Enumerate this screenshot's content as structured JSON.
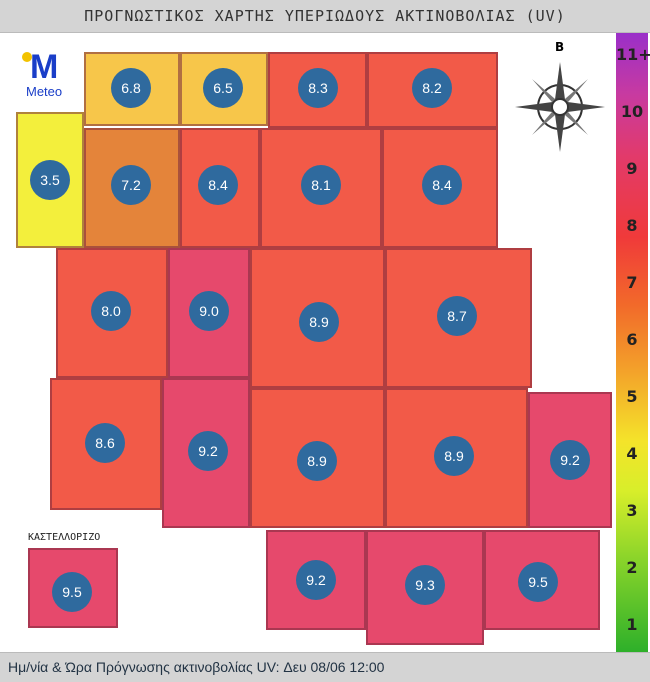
{
  "header": {
    "title": "ΠΡΟΓΝΩΣΤΙΚΟΣ ΧΑΡΤΗΣ ΥΠΕΡΙΩΔΟΥΣ ΑΚΤΙΝΟΒΟΛΙΑΣ (UV)"
  },
  "logo": {
    "text": "Meteo",
    "letter": "M",
    "brand_color": "#1a3ec8",
    "dot_color": "#f2c200"
  },
  "compass": {
    "north_label": "B"
  },
  "inset_label": "ΚΑΣΤΕΛΛΟΡΙΖΟ",
  "cells": [
    {
      "value": "6.8"
    },
    {
      "value": "6.5"
    },
    {
      "value": "8.3"
    },
    {
      "value": "8.2"
    },
    {
      "value": "3.5"
    },
    {
      "value": "7.2"
    },
    {
      "value": "8.4"
    },
    {
      "value": "8.1"
    },
    {
      "value": "8.4"
    },
    {
      "value": "8.0"
    },
    {
      "value": "9.0"
    },
    {
      "value": "8.9"
    },
    {
      "value": "8.7"
    },
    {
      "value": "8.6"
    },
    {
      "value": "9.2"
    },
    {
      "value": "8.9"
    },
    {
      "value": "8.9"
    },
    {
      "value": "9.2"
    },
    {
      "value": "9.5"
    },
    {
      "value": "9.2"
    },
    {
      "value": "9.3"
    },
    {
      "value": "9.5"
    }
  ],
  "scale": {
    "labels": [
      "11+",
      "10",
      "9",
      "8",
      "7",
      "6",
      "5",
      "4",
      "3",
      "2",
      "1"
    ]
  },
  "uv_colors": {
    "low": "#f3ef3c",
    "moderate": "#f7c64a",
    "high": "#e4843a",
    "very_high": "#f25a48",
    "extreme": "#e6496c"
  },
  "footer": {
    "text": "Ημ/νία & Ώρα Πρόγνωσης ακτινοβολίας UV:  Δευ 08/06 12:00"
  }
}
